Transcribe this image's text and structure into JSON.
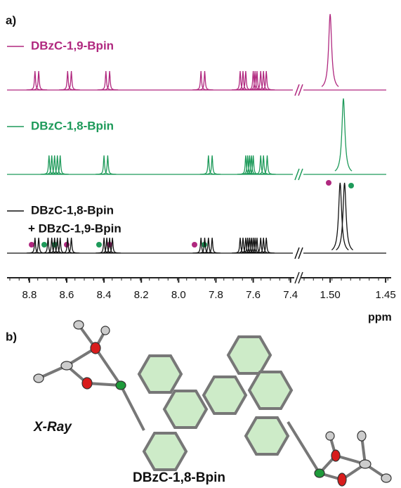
{
  "panel_a": {
    "label": "a)",
    "x_axis": {
      "label": "ppm",
      "segments": [
        {
          "xlim": [
            8.92,
            7.38
          ],
          "xticks": [
            8.8,
            8.6,
            8.4,
            8.2,
            {
              "value": 8,
              "label": "8.0"
            },
            7.8,
            7.6,
            7.4
          ]
        },
        {
          "xlim": [
            1.526,
            1.445
          ],
          "xticks": [
            {
              "value": 1.5,
              "label": "1.50"
            },
            1.45
          ]
        }
      ]
    },
    "spectra": [
      {
        "name": "DBzC-1,9-Bpin",
        "color": "#b0287f",
        "peaks": [
          8.77,
          8.75,
          8.595,
          8.575,
          8.39,
          8.37,
          7.88,
          7.86,
          7.67,
          7.655,
          7.64,
          7.6,
          7.59,
          7.58,
          7.56,
          7.545,
          7.53
        ],
        "right_peaks": [
          1.5
        ]
      },
      {
        "name": "DBzC-1,8-Bpin",
        "color": "#1e9a5a",
        "peaks": [
          8.695,
          8.68,
          8.665,
          8.65,
          8.635,
          8.4,
          8.38,
          7.84,
          7.82,
          7.64,
          7.63,
          7.62,
          7.61,
          7.6,
          7.56,
          7.545,
          7.525
        ],
        "right_peaks": [
          1.488
        ]
      },
      {
        "name": "DBzC-1,8-Bpin",
        "name_line2": "+ DBzC-1,9-Bpin",
        "color": "#111111",
        "peaks": [
          8.77,
          8.75,
          8.7,
          8.68,
          8.665,
          8.65,
          8.635,
          8.595,
          8.575,
          8.4,
          8.385,
          8.37,
          8.355,
          7.88,
          7.86,
          7.84,
          7.82,
          7.67,
          7.655,
          7.64,
          7.63,
          7.62,
          7.61,
          7.6,
          7.59,
          7.58,
          7.56,
          7.545,
          7.53
        ],
        "right_peaks": [
          1.491,
          1.487
        ]
      }
    ]
  },
  "panel_b": {
    "label": "b)",
    "method": "X-Ray",
    "compound": "DBzC-1,8-Bpin"
  }
}
